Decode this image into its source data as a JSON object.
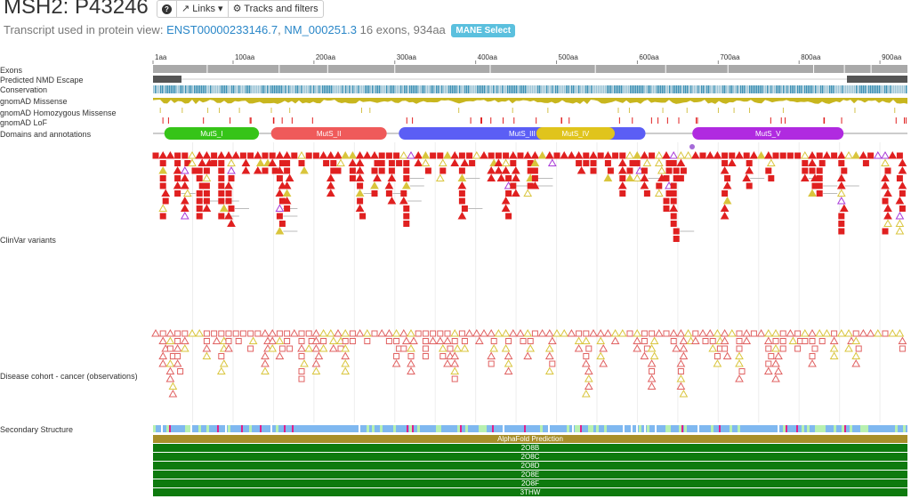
{
  "header": {
    "title": "MSH2: P43246",
    "help_icon": "question-circle-icon",
    "links_label": "Links",
    "tracks_label": "Tracks and filters",
    "transcript_prefix": "Transcript used in protein view:",
    "ensembl_id": "ENST00000233146.7",
    "refseq_id": "NM_000251.3",
    "transcript_info": "16 exons, 934aa",
    "mane_badge": "MANE Select"
  },
  "axis": {
    "ticks": [
      "1aa",
      "100aa",
      "200aa",
      "300aa",
      "400aa",
      "500aa",
      "600aa",
      "700aa",
      "800aa",
      "900aa"
    ],
    "tick_values": [
      1,
      100,
      200,
      300,
      400,
      500,
      600,
      700,
      800,
      900
    ],
    "length": 934
  },
  "tracks": {
    "exons": "Exons",
    "nmd": "Predicted NMD Escape",
    "conservation": "Conservation",
    "gnomad_missense": "gnomAD Missense",
    "gnomad_homozygous": "gnomAD Homozygous Missense",
    "gnomad_lof": "gnomAD LoF",
    "domains": "Domains and annotations",
    "clinvar": "ClinVar variants",
    "cohort": "Disease cohort - cancer (observations)",
    "secondary": "Secondary Structure"
  },
  "domains": [
    {
      "name": "MutS_I",
      "start": 15,
      "end": 132,
      "color": "#36c418"
    },
    {
      "name": "MutS_II",
      "start": 147,
      "end": 290,
      "color": "#ef5a5a"
    },
    {
      "name": "MutS_III",
      "start": 305,
      "end": 610,
      "color": "#5b5ef5"
    },
    {
      "name": "MutS_IV",
      "start": 475,
      "end": 572,
      "color": "#e0c41c"
    },
    {
      "name": "MutS_V",
      "start": 668,
      "end": 855,
      "color": "#b02ae0"
    }
  ],
  "structures": [
    "AlphaFold Prediction",
    "2O8B",
    "2O8C",
    "2O8D",
    "2O8E",
    "2O8F",
    "3THW"
  ],
  "colors": {
    "pathogenic": "#e02020",
    "vus": "#d9c53c",
    "other": "#a83ad8",
    "exon": "#a9a9a9",
    "nmd": "#555555",
    "conservation": "#3b8fb3",
    "alphafold": "#a88f2a",
    "pdb": "#0e7a0e"
  }
}
